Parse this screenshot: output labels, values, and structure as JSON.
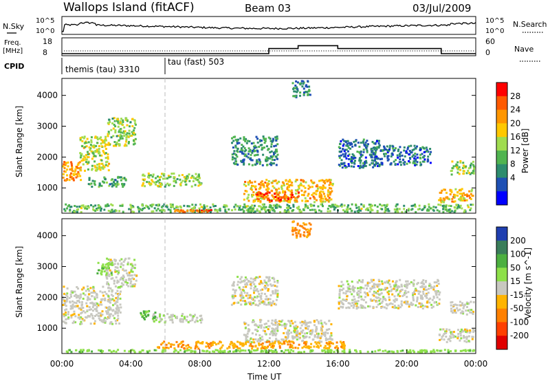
{
  "header": {
    "title": "Wallops Island (fitACF)",
    "beam": "Beam 03",
    "date": "03/Jul/2009"
  },
  "top_panel": {
    "left_label": "N.Sky",
    "right_label": "N.Search",
    "y_ticks": [
      "10^5",
      "10^0"
    ]
  },
  "freq_panel": {
    "left_label_1": "Freq.",
    "left_label_2": "[MHz]",
    "left_ticks": [
      "18",
      "8"
    ],
    "right_label": "Nave",
    "right_ticks": [
      "60",
      "0"
    ]
  },
  "cpid": {
    "label": "CPID",
    "programs": [
      {
        "name": "themis (tau) 3310"
      },
      {
        "name": "tau (fast) 503"
      }
    ]
  },
  "power_colorbar": {
    "label": "Power [dB]",
    "ticks": [
      "28",
      "24",
      "20",
      "16",
      "12",
      "8",
      "4"
    ],
    "colors": [
      "#ff0000",
      "#ff5a00",
      "#ff9600",
      "#ffc800",
      "#a0dc50",
      "#50b450",
      "#2d8c6e",
      "#1e50b4",
      "#0000ff"
    ]
  },
  "velocity_colorbar": {
    "label": "Velocity [m s^-1]",
    "ticks": [
      "200",
      "100",
      "50",
      "15",
      "-15",
      "-50",
      "-100",
      "-200"
    ],
    "colors": [
      "#1f3fb0",
      "#3a7d5a",
      "#4caf40",
      "#8ee04a",
      "#c8c8c0",
      "#ffb400",
      "#ff8000",
      "#ff4000",
      "#e00000"
    ]
  },
  "x_axis": {
    "label": "Time UT",
    "ticks": [
      "00:00",
      "04:00",
      "08:00",
      "12:00",
      "16:00",
      "20:00",
      "00:00"
    ]
  },
  "chart_data": [
    {
      "type": "line",
      "panel": "noise",
      "series": [
        {
          "name": "N.Sky"
        },
        {
          "name": "N.Search"
        }
      ],
      "x_range_hours": [
        0,
        24
      ],
      "note": "noise traces"
    },
    {
      "type": "line",
      "panel": "frequency",
      "series": [
        {
          "name": "Freq.",
          "steps": [
            [
              0,
              8.5
            ],
            [
              12,
              8.5
            ],
            [
              12,
              12
            ],
            [
              13.7,
              12
            ],
            [
              13.7,
              14
            ],
            [
              16,
              14
            ],
            [
              16,
              12
            ],
            [
              22,
              12
            ],
            [
              22,
              8.5
            ],
            [
              24,
              8.5
            ]
          ]
        },
        {
          "name": "Nave"
        }
      ],
      "ylim_left": [
        8,
        18
      ],
      "ylim_right": [
        0,
        60
      ]
    },
    {
      "type": "heatmap",
      "panel": "power",
      "ylabel": "Slant Range [km]",
      "xlabel": "Time UT",
      "xlim_hours": [
        0,
        24
      ],
      "ylim_km": [
        180,
        4550
      ],
      "y_ticks": [
        1000,
        2000,
        3000,
        4000
      ],
      "clim_db": [
        0,
        30
      ],
      "regions": [
        {
          "t0": 0.0,
          "t1": 1.2,
          "r0": 1200,
          "r1": 1900,
          "v": 22
        },
        {
          "t0": 1.0,
          "t1": 2.8,
          "r0": 1500,
          "r1": 2700,
          "v": 16
        },
        {
          "t0": 2.6,
          "t1": 4.4,
          "r0": 2300,
          "r1": 3300,
          "v": 14
        },
        {
          "t0": 1.5,
          "t1": 3.8,
          "r0": 1000,
          "r1": 1400,
          "v": 10
        },
        {
          "t0": 4.6,
          "t1": 8.2,
          "r0": 1000,
          "r1": 1500,
          "v": 14
        },
        {
          "t0": 9.8,
          "t1": 12.6,
          "r0": 1700,
          "r1": 2700,
          "v": 8
        },
        {
          "t0": 10.5,
          "t1": 15.8,
          "r0": 500,
          "r1": 1300,
          "v": 20
        },
        {
          "t0": 11.2,
          "t1": 13.8,
          "r0": 550,
          "r1": 900,
          "v": 26
        },
        {
          "t0": 16.0,
          "t1": 18.5,
          "r0": 1600,
          "r1": 2600,
          "v": 6
        },
        {
          "t0": 17.8,
          "t1": 21.5,
          "r0": 1700,
          "r1": 2400,
          "v": 6
        },
        {
          "t0": 21.8,
          "t1": 24.0,
          "r0": 500,
          "r1": 1000,
          "v": 20
        },
        {
          "t0": 22.5,
          "t1": 24.0,
          "r0": 1400,
          "r1": 1900,
          "v": 14
        },
        {
          "t0": 0.0,
          "t1": 24.0,
          "r0": 180,
          "r1": 500,
          "v": 12
        },
        {
          "t0": 6.5,
          "t1": 9.5,
          "r0": 180,
          "r1": 320,
          "v": 26
        },
        {
          "t0": 13.3,
          "t1": 14.5,
          "r0": 3900,
          "r1": 4500,
          "v": 8
        }
      ]
    },
    {
      "type": "heatmap",
      "panel": "velocity",
      "ylabel": "Slant Range [km]",
      "xlabel": "Time UT",
      "xlim_hours": [
        0,
        24
      ],
      "ylim_km": [
        180,
        4550
      ],
      "y_ticks": [
        1000,
        2000,
        3000,
        4000
      ],
      "clim_ms": [
        -200,
        200
      ],
      "regions": [
        {
          "t0": 0.0,
          "t1": 3.5,
          "r0": 1100,
          "r1": 2400,
          "v": 0
        },
        {
          "t0": 2.5,
          "t1": 4.4,
          "r0": 2300,
          "r1": 3300,
          "v": 0
        },
        {
          "t0": 2.0,
          "t1": 3.0,
          "r0": 2700,
          "r1": 3200,
          "v": 40
        },
        {
          "t0": 5.2,
          "t1": 8.2,
          "r0": 1150,
          "r1": 1500,
          "v": 5
        },
        {
          "t0": 4.5,
          "t1": 5.5,
          "r0": 1250,
          "r1": 1600,
          "v": 60
        },
        {
          "t0": 9.8,
          "t1": 12.6,
          "r0": 1700,
          "r1": 2700,
          "v": 0
        },
        {
          "t0": 10.5,
          "t1": 15.8,
          "r0": 500,
          "r1": 1300,
          "v": 0
        },
        {
          "t0": 16.0,
          "t1": 22.0,
          "r0": 1600,
          "r1": 2600,
          "v": 0
        },
        {
          "t0": 21.8,
          "t1": 24.0,
          "r0": 500,
          "r1": 1000,
          "v": 0
        },
        {
          "t0": 22.5,
          "t1": 24.0,
          "r0": 1400,
          "r1": 1900,
          "v": 0
        },
        {
          "t0": 0.0,
          "t1": 24.0,
          "r0": 180,
          "r1": 330,
          "v": 35
        },
        {
          "t0": 5.5,
          "t1": 16.5,
          "r0": 300,
          "r1": 600,
          "v": -45
        },
        {
          "t0": 13.3,
          "t1": 14.5,
          "r0": 3900,
          "r1": 4500,
          "v": -60
        }
      ]
    }
  ]
}
